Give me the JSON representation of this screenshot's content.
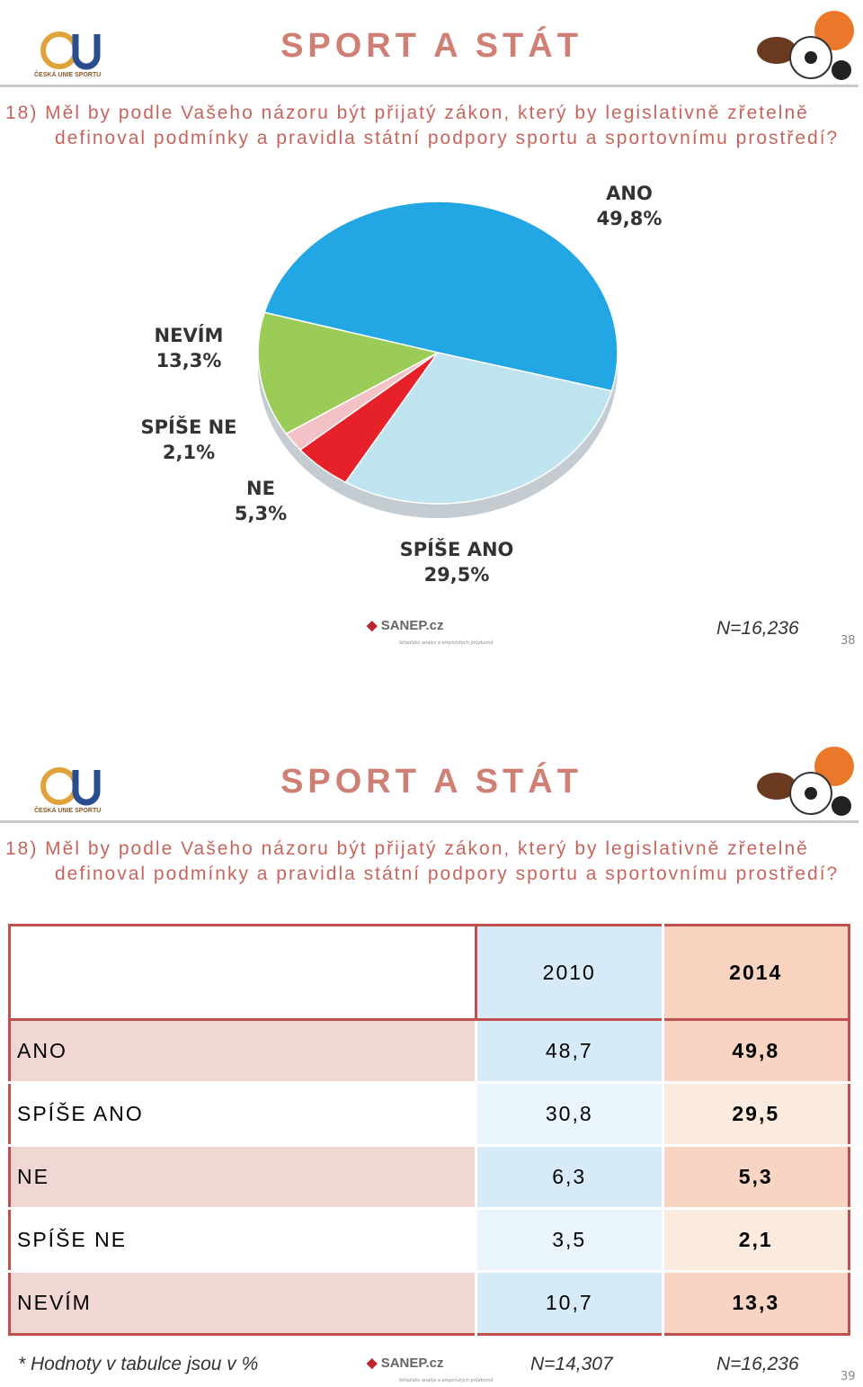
{
  "slides": [
    {
      "logo_text": "ČESKÁ UNIE SPORTU",
      "title": "SPORT A STÁT",
      "question": "18) Měl by podle Vašeho názoru být přijatý zákon, který by legislativně zřetelně definoval podmínky a pravidla státní podpory sportu a sportovnímu prostředí?",
      "sanep": "SANEP.cz",
      "sanep_tagline": "Středisko analýz a empirických průzkumů",
      "sample": "N=16,236",
      "page": "38"
    },
    {
      "logo_text": "ČESKÁ UNIE SPORTU",
      "title": "SPORT A STÁT",
      "question": "18) Měl by podle Vašeho názoru být přijatý zákon, který by legislativně zřetelně definoval podmínky a pravidla státní podpory sportu a sportovnímu prostředí?",
      "table": {
        "columns": [
          "2010",
          "2014"
        ],
        "rows": [
          {
            "label": "ANO",
            "values": [
              "48,7",
              "49,8"
            ]
          },
          {
            "label": "SPÍŠE ANO",
            "values": [
              "30,8",
              "29,5"
            ]
          },
          {
            "label": "NE",
            "values": [
              "6,3",
              "5,3"
            ]
          },
          {
            "label": "SPÍŠE NE",
            "values": [
              "3,5",
              "2,1"
            ]
          },
          {
            "label": "NEVÍM",
            "values": [
              "10,7",
              "13,3"
            ]
          }
        ]
      },
      "footnote": "* Hodnoty v tabulce jsou v %",
      "sanep": "SANEP.cz",
      "sanep_tagline": "Středisko analýz a empirických průzkumů",
      "samples": [
        "N=14,307",
        "N=16,236"
      ],
      "page": "39"
    }
  ],
  "chart_data": {
    "type": "pie",
    "categories": [
      "ANO",
      "SPÍŠE ANO",
      "NE",
      "SPÍŠE NE",
      "NEVÍM"
    ],
    "values": [
      49.8,
      29.5,
      5.3,
      2.1,
      13.3
    ],
    "value_labels": [
      "49,8%",
      "29,5%",
      "5,3%",
      "2,1%",
      "13,3%"
    ],
    "colors": [
      "#22a6e4",
      "#bfe4f0",
      "#e62129",
      "#f2c2c6",
      "#9bcc58"
    ]
  }
}
